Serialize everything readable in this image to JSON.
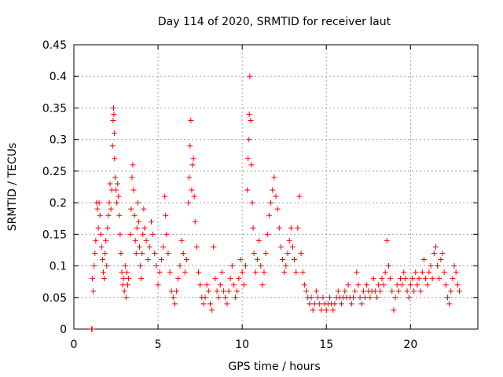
{
  "chart_data": {
    "type": "scatter",
    "title": "Day 114 of 2020, SRMTID for receiver laut",
    "xlabel": "GPS time / hours",
    "ylabel": "SRMTID / TECUs",
    "xlim": [
      0,
      24
    ],
    "ylim": [
      0,
      0.45
    ],
    "xticks": [
      0,
      5,
      10,
      15,
      20
    ],
    "xtick_labels": [
      "0",
      "5",
      "10",
      "15",
      "20"
    ],
    "yticks": [
      0,
      0.05,
      0.1,
      0.15,
      0.2,
      0.25,
      0.3,
      0.35,
      0.4,
      0.45
    ],
    "ytick_labels": [
      "0",
      "0.05",
      "0.1",
      "0.15",
      "0.2",
      "0.25",
      "0.3",
      "0.35",
      "0.4",
      "0.45"
    ],
    "grid": true,
    "marker": "+",
    "color": "#ff0000",
    "series": [
      {
        "name": "SRMTID",
        "points": [
          [
            1.05,
            0.0
          ],
          [
            1.08,
            0.0
          ],
          [
            1.1,
            0.08
          ],
          [
            1.15,
            0.06
          ],
          [
            1.2,
            0.1
          ],
          [
            1.25,
            0.12
          ],
          [
            1.3,
            0.14
          ],
          [
            1.35,
            0.2
          ],
          [
            1.4,
            0.19
          ],
          [
            1.45,
            0.16
          ],
          [
            1.5,
            0.2
          ],
          [
            1.55,
            0.18
          ],
          [
            1.6,
            0.15
          ],
          [
            1.65,
            0.13
          ],
          [
            1.7,
            0.11
          ],
          [
            1.75,
            0.09
          ],
          [
            1.8,
            0.08
          ],
          [
            1.85,
            0.12
          ],
          [
            1.9,
            0.14
          ],
          [
            1.95,
            0.1
          ],
          [
            2.0,
            0.16
          ],
          [
            2.05,
            0.18
          ],
          [
            2.1,
            0.2
          ],
          [
            2.15,
            0.23
          ],
          [
            2.2,
            0.19
          ],
          [
            2.25,
            0.22
          ],
          [
            2.3,
            0.29
          ],
          [
            2.33,
            0.33
          ],
          [
            2.36,
            0.35
          ],
          [
            2.38,
            0.34
          ],
          [
            2.4,
            0.31
          ],
          [
            2.42,
            0.27
          ],
          [
            2.45,
            0.24
          ],
          [
            2.5,
            0.22
          ],
          [
            2.55,
            0.2
          ],
          [
            2.6,
            0.23
          ],
          [
            2.65,
            0.21
          ],
          [
            2.7,
            0.18
          ],
          [
            2.75,
            0.15
          ],
          [
            2.8,
            0.12
          ],
          [
            2.85,
            0.09
          ],
          [
            2.9,
            0.07
          ],
          [
            2.95,
            0.08
          ],
          [
            3.0,
            0.06
          ],
          [
            3.05,
            0.1
          ],
          [
            3.1,
            0.05
          ],
          [
            3.15,
            0.09
          ],
          [
            3.2,
            0.07
          ],
          [
            3.25,
            0.08
          ],
          [
            3.35,
            0.15
          ],
          [
            3.4,
            0.19
          ],
          [
            3.45,
            0.24
          ],
          [
            3.5,
            0.26
          ],
          [
            3.55,
            0.22
          ],
          [
            3.6,
            0.18
          ],
          [
            3.65,
            0.14
          ],
          [
            3.7,
            0.12
          ],
          [
            3.75,
            0.16
          ],
          [
            3.8,
            0.2
          ],
          [
            3.85,
            0.17
          ],
          [
            3.9,
            0.13
          ],
          [
            3.95,
            0.1
          ],
          [
            4.0,
            0.08
          ],
          [
            4.05,
            0.12
          ],
          [
            4.1,
            0.15
          ],
          [
            4.15,
            0.19
          ],
          [
            4.2,
            0.16
          ],
          [
            4.3,
            0.14
          ],
          [
            4.4,
            0.11
          ],
          [
            4.5,
            0.13
          ],
          [
            4.6,
            0.17
          ],
          [
            4.7,
            0.15
          ],
          [
            4.8,
            0.12
          ],
          [
            4.9,
            0.1
          ],
          [
            5.0,
            0.07
          ],
          [
            5.1,
            0.09
          ],
          [
            5.2,
            0.11
          ],
          [
            5.3,
            0.13
          ],
          [
            5.4,
            0.21
          ],
          [
            5.45,
            0.18
          ],
          [
            5.5,
            0.15
          ],
          [
            5.6,
            0.12
          ],
          [
            5.7,
            0.09
          ],
          [
            5.8,
            0.06
          ],
          [
            5.9,
            0.05
          ],
          [
            6.0,
            0.04
          ],
          [
            6.1,
            0.06
          ],
          [
            6.2,
            0.08
          ],
          [
            6.3,
            0.1
          ],
          [
            6.4,
            0.14
          ],
          [
            6.5,
            0.12
          ],
          [
            6.6,
            0.09
          ],
          [
            6.7,
            0.11
          ],
          [
            6.8,
            0.2
          ],
          [
            6.85,
            0.24
          ],
          [
            6.9,
            0.29
          ],
          [
            6.95,
            0.33
          ],
          [
            7.0,
            0.22
          ],
          [
            7.05,
            0.26
          ],
          [
            7.1,
            0.27
          ],
          [
            7.15,
            0.21
          ],
          [
            7.2,
            0.17
          ],
          [
            7.3,
            0.13
          ],
          [
            7.4,
            0.09
          ],
          [
            7.5,
            0.07
          ],
          [
            7.6,
            0.05
          ],
          [
            7.7,
            0.04
          ],
          [
            7.8,
            0.05
          ],
          [
            7.9,
            0.07
          ],
          [
            8.0,
            0.06
          ],
          [
            8.1,
            0.04
          ],
          [
            8.2,
            0.03
          ],
          [
            8.3,
            0.13
          ],
          [
            8.4,
            0.08
          ],
          [
            8.5,
            0.06
          ],
          [
            8.6,
            0.05
          ],
          [
            8.7,
            0.07
          ],
          [
            8.8,
            0.09
          ],
          [
            8.9,
            0.06
          ],
          [
            9.0,
            0.05
          ],
          [
            9.1,
            0.04
          ],
          [
            9.2,
            0.06
          ],
          [
            9.3,
            0.08
          ],
          [
            9.4,
            0.1
          ],
          [
            9.5,
            0.07
          ],
          [
            9.6,
            0.05
          ],
          [
            9.7,
            0.06
          ],
          [
            9.8,
            0.08
          ],
          [
            9.9,
            0.11
          ],
          [
            10.0,
            0.09
          ],
          [
            10.1,
            0.07
          ],
          [
            10.2,
            0.1
          ],
          [
            10.3,
            0.22
          ],
          [
            10.35,
            0.27
          ],
          [
            10.4,
            0.3
          ],
          [
            10.42,
            0.34
          ],
          [
            10.45,
            0.4
          ],
          [
            10.5,
            0.33
          ],
          [
            10.55,
            0.26
          ],
          [
            10.6,
            0.2
          ],
          [
            10.65,
            0.16
          ],
          [
            10.7,
            0.12
          ],
          [
            10.8,
            0.09
          ],
          [
            10.9,
            0.11
          ],
          [
            11.0,
            0.14
          ],
          [
            11.1,
            0.1
          ],
          [
            11.2,
            0.07
          ],
          [
            11.3,
            0.09
          ],
          [
            11.4,
            0.12
          ],
          [
            11.5,
            0.15
          ],
          [
            11.6,
            0.18
          ],
          [
            11.7,
            0.2
          ],
          [
            11.8,
            0.22
          ],
          [
            11.9,
            0.24
          ],
          [
            12.0,
            0.21
          ],
          [
            12.1,
            0.19
          ],
          [
            12.2,
            0.16
          ],
          [
            12.3,
            0.13
          ],
          [
            12.4,
            0.11
          ],
          [
            12.5,
            0.09
          ],
          [
            12.6,
            0.1
          ],
          [
            12.7,
            0.12
          ],
          [
            12.8,
            0.14
          ],
          [
            12.9,
            0.16
          ],
          [
            13.0,
            0.13
          ],
          [
            13.1,
            0.11
          ],
          [
            13.2,
            0.09
          ],
          [
            13.3,
            0.16
          ],
          [
            13.4,
            0.21
          ],
          [
            13.5,
            0.12
          ],
          [
            13.6,
            0.09
          ],
          [
            13.7,
            0.07
          ],
          [
            13.8,
            0.06
          ],
          [
            13.9,
            0.05
          ],
          [
            14.0,
            0.04
          ],
          [
            14.1,
            0.05
          ],
          [
            14.2,
            0.03
          ],
          [
            14.3,
            0.04
          ],
          [
            14.4,
            0.06
          ],
          [
            14.5,
            0.05
          ],
          [
            14.6,
            0.04
          ],
          [
            14.7,
            0.03
          ],
          [
            14.8,
            0.05
          ],
          [
            14.9,
            0.04
          ],
          [
            15.0,
            0.03
          ],
          [
            15.1,
            0.04
          ],
          [
            15.2,
            0.05
          ],
          [
            15.3,
            0.04
          ],
          [
            15.4,
            0.03
          ],
          [
            15.5,
            0.04
          ],
          [
            15.6,
            0.05
          ],
          [
            15.7,
            0.06
          ],
          [
            15.8,
            0.05
          ],
          [
            15.9,
            0.04
          ],
          [
            16.0,
            0.05
          ],
          [
            16.1,
            0.06
          ],
          [
            16.2,
            0.05
          ],
          [
            16.3,
            0.07
          ],
          [
            16.4,
            0.05
          ],
          [
            16.5,
            0.04
          ],
          [
            16.6,
            0.05
          ],
          [
            16.7,
            0.06
          ],
          [
            16.8,
            0.09
          ],
          [
            16.9,
            0.07
          ],
          [
            17.0,
            0.05
          ],
          [
            17.1,
            0.04
          ],
          [
            17.2,
            0.06
          ],
          [
            17.3,
            0.05
          ],
          [
            17.4,
            0.07
          ],
          [
            17.5,
            0.06
          ],
          [
            17.6,
            0.05
          ],
          [
            17.7,
            0.06
          ],
          [
            17.8,
            0.08
          ],
          [
            17.9,
            0.06
          ],
          [
            18.0,
            0.05
          ],
          [
            18.1,
            0.07
          ],
          [
            18.2,
            0.06
          ],
          [
            18.3,
            0.08
          ],
          [
            18.4,
            0.07
          ],
          [
            18.5,
            0.09
          ],
          [
            18.6,
            0.14
          ],
          [
            18.7,
            0.1
          ],
          [
            18.8,
            0.08
          ],
          [
            18.9,
            0.06
          ],
          [
            19.0,
            0.03
          ],
          [
            19.1,
            0.05
          ],
          [
            19.2,
            0.07
          ],
          [
            19.3,
            0.06
          ],
          [
            19.4,
            0.08
          ],
          [
            19.5,
            0.07
          ],
          [
            19.6,
            0.09
          ],
          [
            19.7,
            0.08
          ],
          [
            19.8,
            0.06
          ],
          [
            19.9,
            0.05
          ],
          [
            20.0,
            0.07
          ],
          [
            20.1,
            0.08
          ],
          [
            20.2,
            0.06
          ],
          [
            20.3,
            0.09
          ],
          [
            20.4,
            0.07
          ],
          [
            20.5,
            0.08
          ],
          [
            20.6,
            0.06
          ],
          [
            20.7,
            0.09
          ],
          [
            20.8,
            0.11
          ],
          [
            20.9,
            0.08
          ],
          [
            21.0,
            0.07
          ],
          [
            21.1,
            0.09
          ],
          [
            21.2,
            0.1
          ],
          [
            21.3,
            0.08
          ],
          [
            21.4,
            0.12
          ],
          [
            21.5,
            0.13
          ],
          [
            21.6,
            0.1
          ],
          [
            21.7,
            0.08
          ],
          [
            21.8,
            0.11
          ],
          [
            21.9,
            0.12
          ],
          [
            22.0,
            0.09
          ],
          [
            22.1,
            0.07
          ],
          [
            22.2,
            0.05
          ],
          [
            22.3,
            0.04
          ],
          [
            22.4,
            0.06
          ],
          [
            22.5,
            0.08
          ],
          [
            22.6,
            0.1
          ],
          [
            22.7,
            0.09
          ],
          [
            22.8,
            0.07
          ],
          [
            22.9,
            0.06
          ]
        ]
      }
    ]
  }
}
